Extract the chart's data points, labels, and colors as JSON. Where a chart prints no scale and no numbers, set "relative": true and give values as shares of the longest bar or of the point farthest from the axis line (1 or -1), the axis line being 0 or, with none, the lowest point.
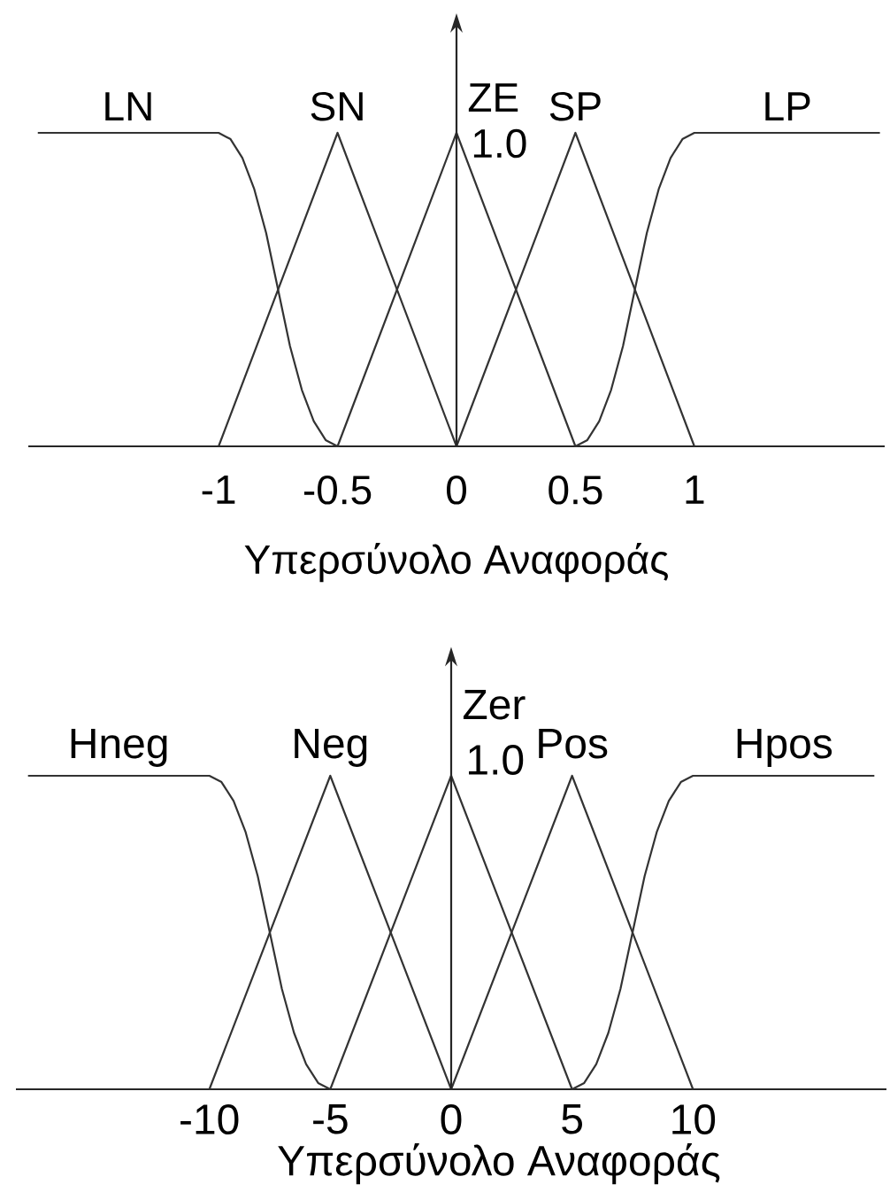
{
  "chart_data": [
    {
      "type": "line",
      "relative": true,
      "xlabel": "Υπερσύνολο Αναφοράς",
      "xlim": [
        -1.8,
        1.8
      ],
      "xticks": [
        -1,
        -0.5,
        0,
        0.5,
        1
      ],
      "annotations": [
        {
          "text": "1.0",
          "x": 0,
          "y": 1
        }
      ],
      "series": [
        {
          "name": "LN",
          "color": "#333333",
          "x": [
            -1.76,
            -1,
            -0.95,
            -0.9,
            -0.85,
            -0.8,
            -0.75,
            -0.7,
            -0.65,
            -0.6,
            -0.55,
            -0.5
          ],
          "values": [
            1,
            1,
            0.98,
            0.92,
            0.82,
            0.68,
            0.5,
            0.32,
            0.18,
            0.08,
            0.02,
            0
          ]
        },
        {
          "name": "SN",
          "color": "#333333",
          "x": [
            -1,
            -0.5,
            0
          ],
          "values": [
            0,
            1,
            0
          ]
        },
        {
          "name": "ZE",
          "color": "#333333",
          "x": [
            -0.5,
            0,
            0.5
          ],
          "values": [
            0,
            1,
            0
          ]
        },
        {
          "name": "SP",
          "color": "#333333",
          "x": [
            0,
            0.5,
            1
          ],
          "values": [
            0,
            1,
            0
          ]
        },
        {
          "name": "LP",
          "color": "#333333",
          "x": [
            0.5,
            0.55,
            0.6,
            0.65,
            0.7,
            0.75,
            0.8,
            0.85,
            0.9,
            0.95,
            1,
            1.78
          ],
          "values": [
            0,
            0.02,
            0.08,
            0.18,
            0.32,
            0.5,
            0.68,
            0.82,
            0.92,
            0.98,
            1,
            1
          ]
        }
      ]
    },
    {
      "type": "line",
      "relative": true,
      "xlabel": "Υπερσύνολο Αναφοράς",
      "xlim": [
        -18,
        18
      ],
      "xticks": [
        -10,
        -5,
        0,
        5,
        10
      ],
      "annotations": [
        {
          "text": "1.0",
          "x": 0,
          "y": 1
        }
      ],
      "series": [
        {
          "name": "Hneg",
          "color": "#333333",
          "x": [
            -17.5,
            -10,
            -9.5,
            -9,
            -8.5,
            -8,
            -7.5,
            -7,
            -6.5,
            -6,
            -5.5,
            -5
          ],
          "values": [
            1,
            1,
            0.98,
            0.92,
            0.82,
            0.68,
            0.5,
            0.32,
            0.18,
            0.08,
            0.02,
            0
          ]
        },
        {
          "name": "Neg",
          "color": "#333333",
          "x": [
            -10,
            -5,
            0
          ],
          "values": [
            0,
            1,
            0
          ]
        },
        {
          "name": "Zer",
          "color": "#333333",
          "x": [
            -5,
            0,
            5
          ],
          "values": [
            0,
            1,
            0
          ]
        },
        {
          "name": "Pos",
          "color": "#333333",
          "x": [
            0,
            5,
            10
          ],
          "values": [
            0,
            1,
            0
          ]
        },
        {
          "name": "Hpos",
          "color": "#333333",
          "x": [
            5,
            5.5,
            6,
            6.5,
            7,
            7.5,
            8,
            8.5,
            9,
            9.5,
            10,
            17.5
          ],
          "values": [
            0,
            0.02,
            0.08,
            0.18,
            0.32,
            0.5,
            0.68,
            0.82,
            0.92,
            0.98,
            1,
            1
          ]
        }
      ]
    }
  ]
}
